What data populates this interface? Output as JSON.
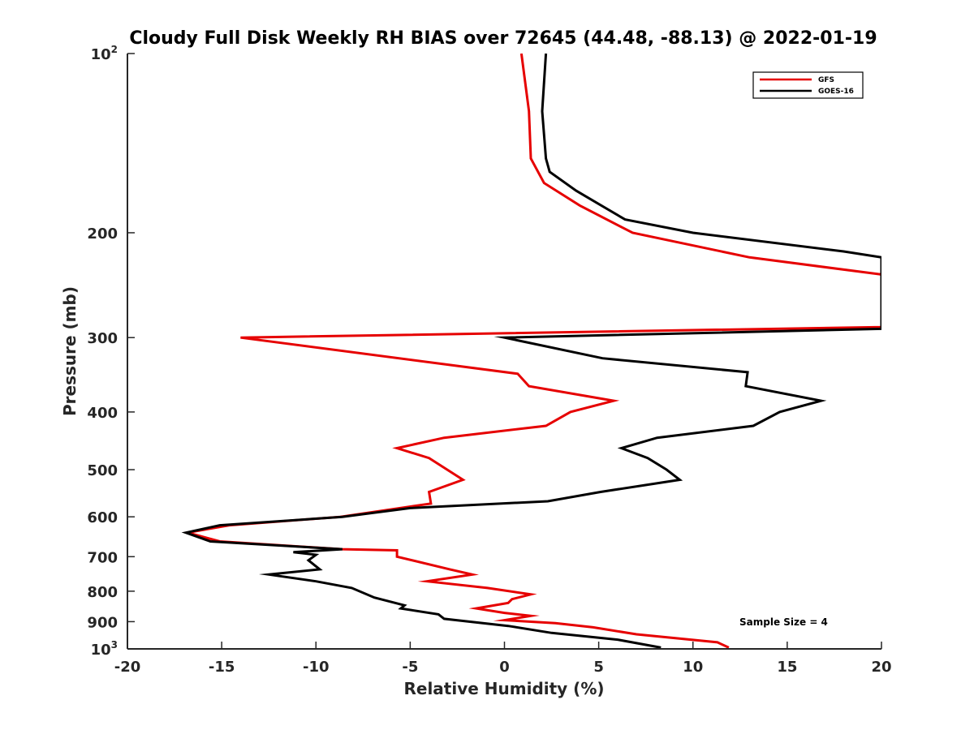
{
  "chart_data": {
    "type": "line",
    "title": "Cloudy Full Disk Weekly RH BIAS over 72645 (44.48, -88.13) @ 2022-01-19",
    "xlabel": "Relative Humidity (%)",
    "ylabel": "Pressure (mb)",
    "xlim": [
      -20,
      20
    ],
    "ylim": [
      100,
      1000
    ],
    "y_scale": "log",
    "y_reversed": true,
    "grid": false,
    "legend_position": "top-right",
    "x_ticks": [
      -20,
      -15,
      -10,
      -5,
      0,
      5,
      10,
      15,
      20
    ],
    "x_tick_labels": [
      "-20",
      "-15",
      "-10",
      "-5",
      "0",
      "5",
      "10",
      "15",
      "20"
    ],
    "y_ticks": [
      {
        "value": 100,
        "base": "10",
        "exp": "2"
      },
      {
        "value": 200,
        "label": "200"
      },
      {
        "value": 300,
        "label": "300"
      },
      {
        "value": 400,
        "label": "400"
      },
      {
        "value": 500,
        "label": "500"
      },
      {
        "value": 600,
        "label": "600"
      },
      {
        "value": 700,
        "label": "700"
      },
      {
        "value": 800,
        "label": "800"
      },
      {
        "value": 900,
        "label": "900"
      },
      {
        "value": 1000,
        "base": "10",
        "exp": "3"
      }
    ],
    "annotation": "Sample Size = 4",
    "series": [
      {
        "name": "GFS",
        "color": "#e60000",
        "points": [
          [
            0.9,
            100
          ],
          [
            1.3,
            125
          ],
          [
            1.4,
            150
          ],
          [
            2.1,
            165
          ],
          [
            4.0,
            180
          ],
          [
            6.8,
            200
          ],
          [
            13.0,
            220
          ],
          [
            20.0,
            235
          ],
          [
            20.0,
            288
          ],
          [
            -14.0,
            300
          ],
          [
            0.7,
            345
          ],
          [
            1.3,
            362
          ],
          [
            5.8,
            383
          ],
          [
            3.5,
            400
          ],
          [
            2.2,
            422
          ],
          [
            -3.2,
            442
          ],
          [
            -5.7,
            460
          ],
          [
            -4.0,
            478
          ],
          [
            -2.2,
            520
          ],
          [
            -4.0,
            545
          ],
          [
            -3.9,
            570
          ],
          [
            -8.7,
            600
          ],
          [
            -14.6,
            620
          ],
          [
            -16.8,
            638
          ],
          [
            -15.1,
            660
          ],
          [
            -8.6,
            680
          ],
          [
            -5.7,
            683
          ],
          [
            -5.7,
            700
          ],
          [
            -2.9,
            735
          ],
          [
            -1.7,
            750
          ],
          [
            -4.1,
            770
          ],
          [
            -0.9,
            790
          ],
          [
            1.4,
            810
          ],
          [
            0.4,
            825
          ],
          [
            0.2,
            837
          ],
          [
            -1.5,
            855
          ],
          [
            0.0,
            870
          ],
          [
            1.4,
            880
          ],
          [
            0.0,
            895
          ],
          [
            2.7,
            905
          ],
          [
            4.7,
            920
          ],
          [
            7.0,
            945
          ],
          [
            11.3,
            975
          ],
          [
            11.9,
            995
          ]
        ]
      },
      {
        "name": "GOES-16",
        "color": "#000000",
        "points": [
          [
            2.2,
            100
          ],
          [
            2.0,
            125
          ],
          [
            2.2,
            150
          ],
          [
            2.4,
            158
          ],
          [
            3.8,
            170
          ],
          [
            6.4,
            190
          ],
          [
            10.0,
            200
          ],
          [
            18.0,
            215
          ],
          [
            20.0,
            220
          ],
          [
            20.0,
            290
          ],
          [
            0.0,
            300
          ],
          [
            5.2,
            325
          ],
          [
            12.9,
            343
          ],
          [
            12.8,
            362
          ],
          [
            16.8,
            383
          ],
          [
            14.6,
            400
          ],
          [
            13.2,
            422
          ],
          [
            8.1,
            442
          ],
          [
            6.2,
            460
          ],
          [
            7.6,
            478
          ],
          [
            8.6,
            500
          ],
          [
            9.3,
            520
          ],
          [
            5.1,
            545
          ],
          [
            2.3,
            565
          ],
          [
            -5.0,
            580
          ],
          [
            -8.6,
            600
          ],
          [
            -15.1,
            620
          ],
          [
            -16.9,
            638
          ],
          [
            -15.6,
            660
          ],
          [
            -8.6,
            680
          ],
          [
            -11.2,
            688
          ],
          [
            -10.0,
            695
          ],
          [
            -10.4,
            710
          ],
          [
            -9.8,
            735
          ],
          [
            -12.5,
            750
          ],
          [
            -10.0,
            770
          ],
          [
            -8.1,
            790
          ],
          [
            -6.9,
            820
          ],
          [
            -5.3,
            845
          ],
          [
            -5.5,
            855
          ],
          [
            -3.5,
            875
          ],
          [
            -3.2,
            890
          ],
          [
            0.2,
            915
          ],
          [
            2.5,
            940
          ],
          [
            6.0,
            965
          ],
          [
            8.3,
            995
          ]
        ]
      }
    ]
  }
}
